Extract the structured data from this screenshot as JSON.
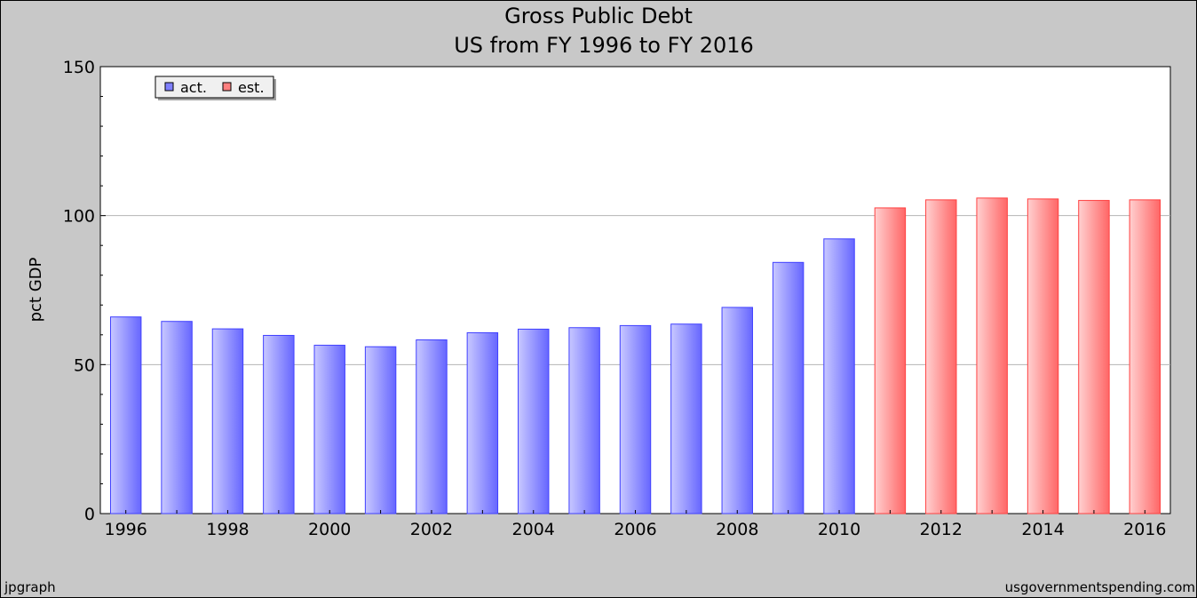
{
  "chart_data": {
    "type": "bar",
    "title": "Gross Public Debt",
    "subtitle": "US from FY 1996 to FY 2016",
    "ylabel": "pct GDP",
    "xlabel": "",
    "ylim": [
      0,
      150
    ],
    "yticks": [
      0,
      50,
      100,
      150
    ],
    "categories": [
      "1996",
      "1997",
      "1998",
      "1999",
      "2000",
      "2001",
      "2002",
      "2003",
      "2004",
      "2005",
      "2006",
      "2007",
      "2008",
      "2009",
      "2010",
      "2011",
      "2012",
      "2013",
      "2014",
      "2015",
      "2016"
    ],
    "values": [
      66.0,
      64.5,
      62.0,
      59.8,
      56.5,
      56.0,
      58.3,
      60.7,
      61.9,
      62.4,
      63.1,
      63.6,
      69.2,
      84.3,
      92.2,
      102.6,
      105.3,
      105.9,
      105.6,
      105.1,
      105.3
    ],
    "kinds": [
      "act",
      "act",
      "act",
      "act",
      "act",
      "act",
      "act",
      "act",
      "act",
      "act",
      "act",
      "act",
      "act",
      "act",
      "act",
      "est",
      "est",
      "est",
      "est",
      "est",
      "est"
    ],
    "xtick_labels": [
      "1996",
      "1998",
      "2000",
      "2002",
      "2004",
      "2006",
      "2008",
      "2010",
      "2012",
      "2014",
      "2016"
    ],
    "legend": [
      {
        "key": "act",
        "label": "act.",
        "color": "#8080ff"
      },
      {
        "key": "est",
        "label": "est.",
        "color": "#ff8080"
      }
    ],
    "legend_position": "top-left",
    "grid": true
  },
  "footer": {
    "left": "jpgraph",
    "right": "usgovernmentspending.com"
  },
  "colors": {
    "background": "#c8c8c8",
    "plot_background": "#ffffff",
    "act_dark": "#6666ff",
    "act_light": "#c8c8ff",
    "est_dark": "#ff6666",
    "est_light": "#ffd0d0",
    "grid": "#b4b4b4"
  }
}
